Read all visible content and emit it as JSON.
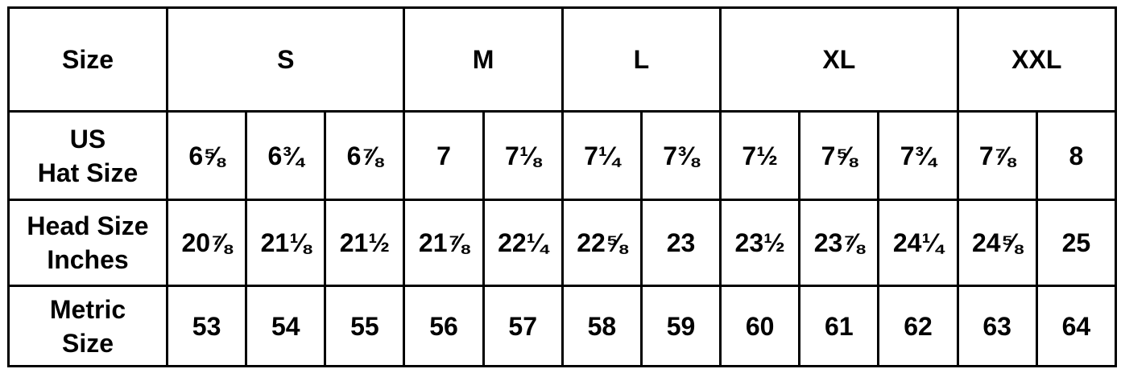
{
  "table": {
    "header": {
      "label": "Size",
      "groups": [
        {
          "label": "S",
          "span": 3
        },
        {
          "label": "M",
          "span": 2
        },
        {
          "label": "L",
          "span": 2
        },
        {
          "label": "XL",
          "span": 3
        },
        {
          "label": "XXL",
          "span": 2
        }
      ]
    },
    "rows": [
      {
        "label": "US\nHat Size",
        "values": [
          "6⅝",
          "6¾",
          "6⅞",
          "7",
          "7⅛",
          "7¼",
          "7⅜",
          "7½",
          "7⅝",
          "7¾",
          "7⅞",
          "8"
        ]
      },
      {
        "label": "Head Size\nInches",
        "values": [
          "20⅞",
          "21⅛",
          "21½",
          "21⅞",
          "22¼",
          "22⅝",
          "23",
          "23½",
          "23⅞",
          "24¼",
          "24⅝",
          "25"
        ]
      },
      {
        "label": "Metric\nSize",
        "values": [
          "53",
          "54",
          "55",
          "56",
          "57",
          "58",
          "59",
          "60",
          "61",
          "62",
          "63",
          "64"
        ]
      }
    ]
  }
}
